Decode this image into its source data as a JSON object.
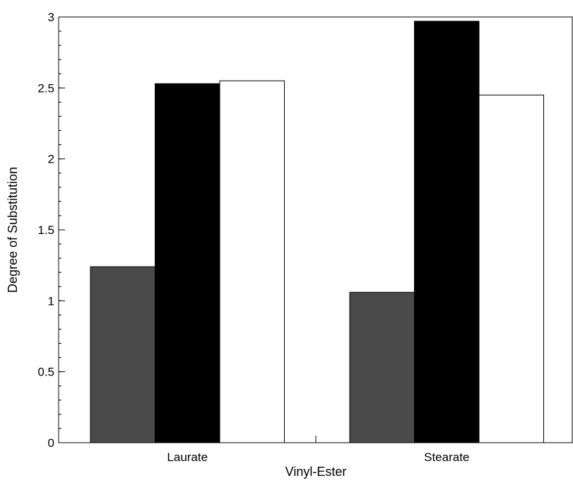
{
  "chart_data": {
    "type": "bar",
    "categories": [
      "Laurate",
      "Stearate"
    ],
    "series": [
      {
        "values": [
          1.24,
          1.06
        ],
        "color": "#4a4a4a"
      },
      {
        "values": [
          2.53,
          2.97
        ],
        "color": "#000000"
      },
      {
        "values": [
          2.55,
          2.45
        ],
        "color": "#ffffff"
      }
    ],
    "xlabel": "Vinyl-Ester",
    "ylabel": "Degree of Substitution",
    "ylim": [
      0,
      3
    ],
    "yticks": [
      "0",
      "0.5",
      "1",
      "1.5",
      "2",
      "2.5",
      "3"
    ],
    "grid": false,
    "legend": false
  }
}
